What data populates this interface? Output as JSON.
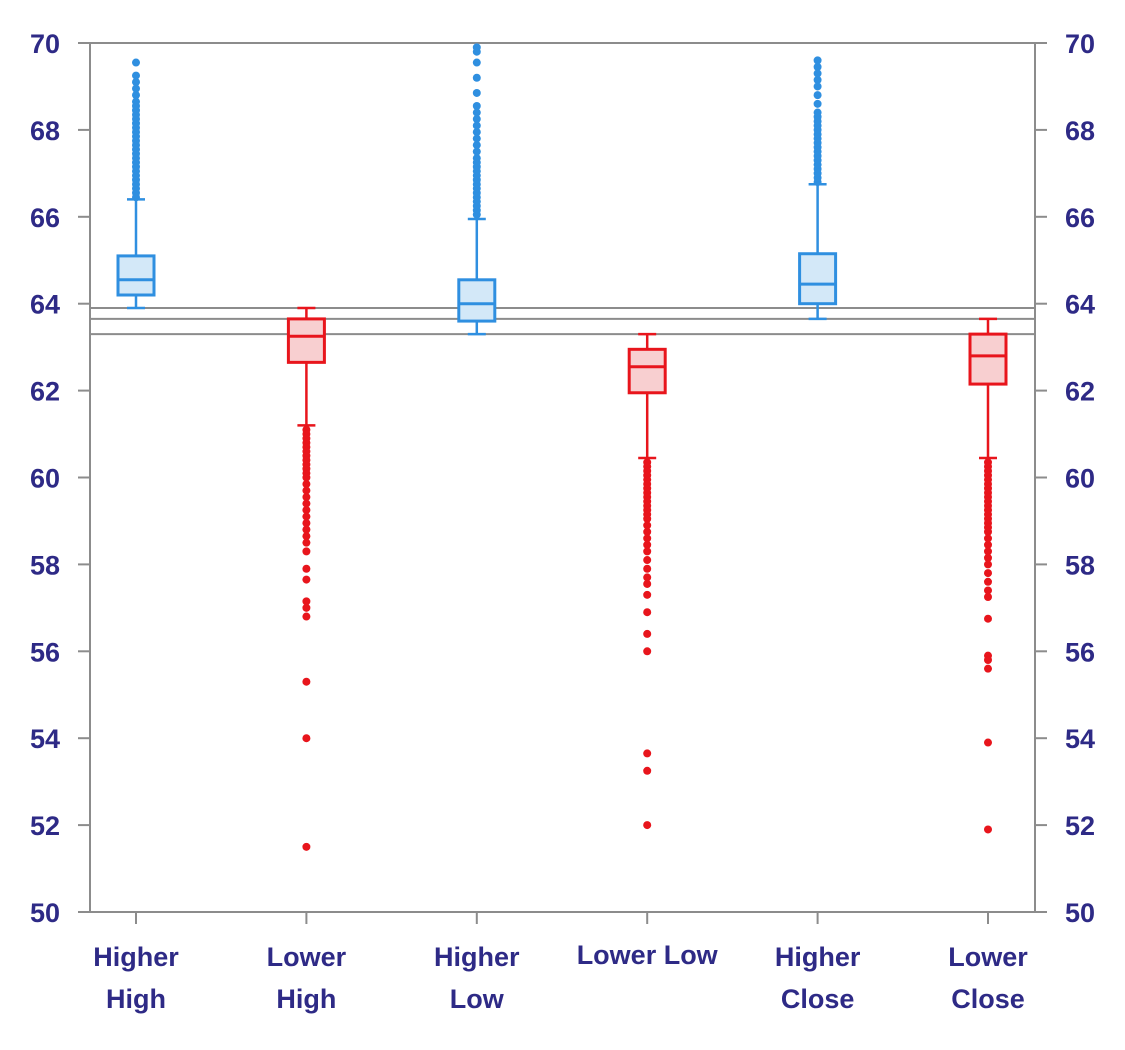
{
  "colors": {
    "axis": "#8c8c8c",
    "label": "#2e2a86",
    "higher_stroke": "#2f8fe0",
    "higher_fill": "#d3e8f8",
    "higher_outlier": "#2f8fe0",
    "lower_stroke": "#e8151c",
    "lower_fill": "#f8cfd0",
    "lower_outlier": "#e8151c"
  },
  "chart_data": {
    "type": "box",
    "title": "",
    "xlabel": "",
    "ylabel": "",
    "ylim": [
      50,
      70
    ],
    "yticks": [
      50,
      52,
      54,
      56,
      58,
      60,
      62,
      64,
      66,
      68,
      70
    ],
    "right_axis": true,
    "grid": false,
    "reference_lines": [
      63.9,
      63.65,
      63.3
    ],
    "categories": [
      [
        "Higher",
        "High"
      ],
      [
        "Lower",
        "High"
      ],
      [
        "Higher",
        "Low"
      ],
      [
        "Lower Low"
      ],
      [
        "Higher",
        "Close"
      ],
      [
        "Lower",
        "Close"
      ]
    ],
    "boxes": [
      {
        "group": "higher",
        "whisker_low": 63.9,
        "q1": 64.2,
        "median": 64.55,
        "q3": 65.1,
        "whisker_high": 66.4,
        "outliers": [
          66.45,
          66.55,
          66.65,
          66.75,
          66.85,
          66.95,
          67.05,
          67.15,
          67.25,
          67.35,
          67.45,
          67.55,
          67.65,
          67.75,
          67.85,
          67.95,
          68.05,
          68.15,
          68.25,
          68.35,
          68.45,
          68.55,
          68.65,
          68.8,
          68.95,
          69.1,
          69.25,
          69.55
        ]
      },
      {
        "group": "lower",
        "whisker_low": 61.2,
        "q1": 62.65,
        "median": 63.25,
        "q3": 63.65,
        "whisker_high": 63.9,
        "outliers": [
          61.1,
          61.0,
          60.9,
          60.8,
          60.7,
          60.6,
          60.5,
          60.4,
          60.3,
          60.2,
          60.1,
          60.0,
          59.85,
          59.7,
          59.55,
          59.4,
          59.25,
          59.1,
          58.95,
          58.8,
          58.65,
          58.5,
          58.3,
          57.9,
          57.65,
          57.15,
          57.0,
          56.8,
          55.3,
          54.0,
          51.5
        ]
      },
      {
        "group": "higher",
        "whisker_low": 63.3,
        "q1": 63.6,
        "median": 64.0,
        "q3": 64.55,
        "whisker_high": 65.95,
        "outliers": [
          66.05,
          66.15,
          66.25,
          66.35,
          66.45,
          66.55,
          66.65,
          66.75,
          66.85,
          66.95,
          67.05,
          67.15,
          67.25,
          67.35,
          67.5,
          67.65,
          67.8,
          67.95,
          68.1,
          68.25,
          68.4,
          68.55,
          68.85,
          69.2,
          69.55,
          69.8,
          69.9
        ]
      },
      {
        "group": "lower",
        "whisker_low": 60.45,
        "q1": 61.95,
        "median": 62.55,
        "q3": 62.95,
        "whisker_high": 63.3,
        "outliers": [
          60.35,
          60.25,
          60.15,
          60.05,
          59.95,
          59.85,
          59.75,
          59.65,
          59.55,
          59.45,
          59.35,
          59.25,
          59.15,
          59.05,
          58.9,
          58.75,
          58.6,
          58.45,
          58.3,
          58.1,
          57.9,
          57.7,
          57.55,
          57.3,
          56.9,
          56.4,
          56.0,
          53.65,
          53.25,
          52.0
        ]
      },
      {
        "group": "higher",
        "whisker_low": 63.65,
        "q1": 64.0,
        "median": 64.45,
        "q3": 65.15,
        "whisker_high": 66.75,
        "outliers": [
          66.8,
          66.9,
          67.0,
          67.1,
          67.2,
          67.3,
          67.4,
          67.5,
          67.6,
          67.7,
          67.8,
          67.9,
          68.0,
          68.1,
          68.2,
          68.3,
          68.4,
          68.6,
          68.8,
          69.0,
          69.15,
          69.3,
          69.45,
          69.6
        ]
      },
      {
        "group": "lower",
        "whisker_low": 60.45,
        "q1": 62.15,
        "median": 62.8,
        "q3": 63.3,
        "whisker_high": 63.65,
        "outliers": [
          60.35,
          60.25,
          60.15,
          60.05,
          59.95,
          59.85,
          59.75,
          59.65,
          59.55,
          59.45,
          59.35,
          59.25,
          59.15,
          59.05,
          58.95,
          58.85,
          58.75,
          58.6,
          58.45,
          58.3,
          58.15,
          58.0,
          57.8,
          57.6,
          57.4,
          57.25,
          56.75,
          55.9,
          55.8,
          55.6,
          53.9,
          51.9
        ]
      }
    ]
  }
}
